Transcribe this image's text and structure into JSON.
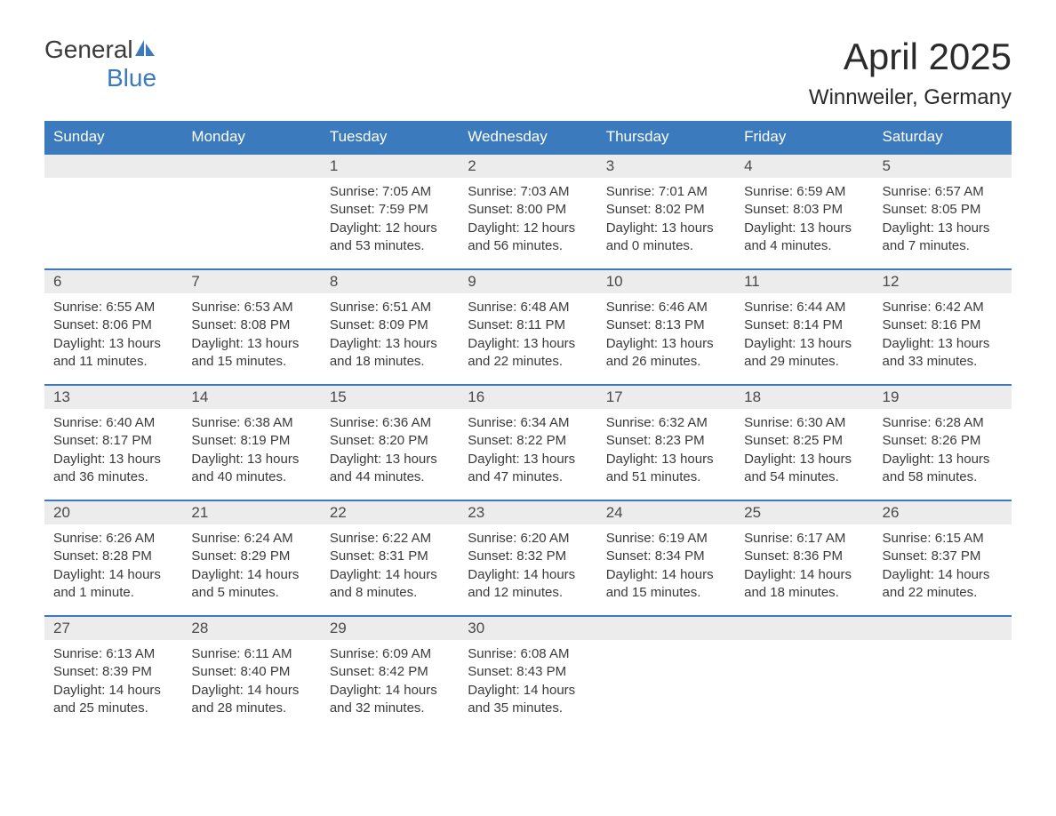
{
  "logo": {
    "text1": "General",
    "text2": "Blue",
    "icon_color": "#3a7abd"
  },
  "title": "April 2025",
  "location": "Winnweiler, Germany",
  "colors": {
    "header_bg": "#3a7abd",
    "header_text": "#ffffff",
    "day_number_bg": "#ececec",
    "day_number_text": "#4a4a4a",
    "body_text": "#3a3a3a",
    "border": "#3a7abd",
    "background": "#ffffff"
  },
  "day_names": [
    "Sunday",
    "Monday",
    "Tuesday",
    "Wednesday",
    "Thursday",
    "Friday",
    "Saturday"
  ],
  "weeks": [
    [
      null,
      null,
      {
        "n": "1",
        "sunrise": "Sunrise: 7:05 AM",
        "sunset": "Sunset: 7:59 PM",
        "daylight": "Daylight: 12 hours and 53 minutes."
      },
      {
        "n": "2",
        "sunrise": "Sunrise: 7:03 AM",
        "sunset": "Sunset: 8:00 PM",
        "daylight": "Daylight: 12 hours and 56 minutes."
      },
      {
        "n": "3",
        "sunrise": "Sunrise: 7:01 AM",
        "sunset": "Sunset: 8:02 PM",
        "daylight": "Daylight: 13 hours and 0 minutes."
      },
      {
        "n": "4",
        "sunrise": "Sunrise: 6:59 AM",
        "sunset": "Sunset: 8:03 PM",
        "daylight": "Daylight: 13 hours and 4 minutes."
      },
      {
        "n": "5",
        "sunrise": "Sunrise: 6:57 AM",
        "sunset": "Sunset: 8:05 PM",
        "daylight": "Daylight: 13 hours and 7 minutes."
      }
    ],
    [
      {
        "n": "6",
        "sunrise": "Sunrise: 6:55 AM",
        "sunset": "Sunset: 8:06 PM",
        "daylight": "Daylight: 13 hours and 11 minutes."
      },
      {
        "n": "7",
        "sunrise": "Sunrise: 6:53 AM",
        "sunset": "Sunset: 8:08 PM",
        "daylight": "Daylight: 13 hours and 15 minutes."
      },
      {
        "n": "8",
        "sunrise": "Sunrise: 6:51 AM",
        "sunset": "Sunset: 8:09 PM",
        "daylight": "Daylight: 13 hours and 18 minutes."
      },
      {
        "n": "9",
        "sunrise": "Sunrise: 6:48 AM",
        "sunset": "Sunset: 8:11 PM",
        "daylight": "Daylight: 13 hours and 22 minutes."
      },
      {
        "n": "10",
        "sunrise": "Sunrise: 6:46 AM",
        "sunset": "Sunset: 8:13 PM",
        "daylight": "Daylight: 13 hours and 26 minutes."
      },
      {
        "n": "11",
        "sunrise": "Sunrise: 6:44 AM",
        "sunset": "Sunset: 8:14 PM",
        "daylight": "Daylight: 13 hours and 29 minutes."
      },
      {
        "n": "12",
        "sunrise": "Sunrise: 6:42 AM",
        "sunset": "Sunset: 8:16 PM",
        "daylight": "Daylight: 13 hours and 33 minutes."
      }
    ],
    [
      {
        "n": "13",
        "sunrise": "Sunrise: 6:40 AM",
        "sunset": "Sunset: 8:17 PM",
        "daylight": "Daylight: 13 hours and 36 minutes."
      },
      {
        "n": "14",
        "sunrise": "Sunrise: 6:38 AM",
        "sunset": "Sunset: 8:19 PM",
        "daylight": "Daylight: 13 hours and 40 minutes."
      },
      {
        "n": "15",
        "sunrise": "Sunrise: 6:36 AM",
        "sunset": "Sunset: 8:20 PM",
        "daylight": "Daylight: 13 hours and 44 minutes."
      },
      {
        "n": "16",
        "sunrise": "Sunrise: 6:34 AM",
        "sunset": "Sunset: 8:22 PM",
        "daylight": "Daylight: 13 hours and 47 minutes."
      },
      {
        "n": "17",
        "sunrise": "Sunrise: 6:32 AM",
        "sunset": "Sunset: 8:23 PM",
        "daylight": "Daylight: 13 hours and 51 minutes."
      },
      {
        "n": "18",
        "sunrise": "Sunrise: 6:30 AM",
        "sunset": "Sunset: 8:25 PM",
        "daylight": "Daylight: 13 hours and 54 minutes."
      },
      {
        "n": "19",
        "sunrise": "Sunrise: 6:28 AM",
        "sunset": "Sunset: 8:26 PM",
        "daylight": "Daylight: 13 hours and 58 minutes."
      }
    ],
    [
      {
        "n": "20",
        "sunrise": "Sunrise: 6:26 AM",
        "sunset": "Sunset: 8:28 PM",
        "daylight": "Daylight: 14 hours and 1 minute."
      },
      {
        "n": "21",
        "sunrise": "Sunrise: 6:24 AM",
        "sunset": "Sunset: 8:29 PM",
        "daylight": "Daylight: 14 hours and 5 minutes."
      },
      {
        "n": "22",
        "sunrise": "Sunrise: 6:22 AM",
        "sunset": "Sunset: 8:31 PM",
        "daylight": "Daylight: 14 hours and 8 minutes."
      },
      {
        "n": "23",
        "sunrise": "Sunrise: 6:20 AM",
        "sunset": "Sunset: 8:32 PM",
        "daylight": "Daylight: 14 hours and 12 minutes."
      },
      {
        "n": "24",
        "sunrise": "Sunrise: 6:19 AM",
        "sunset": "Sunset: 8:34 PM",
        "daylight": "Daylight: 14 hours and 15 minutes."
      },
      {
        "n": "25",
        "sunrise": "Sunrise: 6:17 AM",
        "sunset": "Sunset: 8:36 PM",
        "daylight": "Daylight: 14 hours and 18 minutes."
      },
      {
        "n": "26",
        "sunrise": "Sunrise: 6:15 AM",
        "sunset": "Sunset: 8:37 PM",
        "daylight": "Daylight: 14 hours and 22 minutes."
      }
    ],
    [
      {
        "n": "27",
        "sunrise": "Sunrise: 6:13 AM",
        "sunset": "Sunset: 8:39 PM",
        "daylight": "Daylight: 14 hours and 25 minutes."
      },
      {
        "n": "28",
        "sunrise": "Sunrise: 6:11 AM",
        "sunset": "Sunset: 8:40 PM",
        "daylight": "Daylight: 14 hours and 28 minutes."
      },
      {
        "n": "29",
        "sunrise": "Sunrise: 6:09 AM",
        "sunset": "Sunset: 8:42 PM",
        "daylight": "Daylight: 14 hours and 32 minutes."
      },
      {
        "n": "30",
        "sunrise": "Sunrise: 6:08 AM",
        "sunset": "Sunset: 8:43 PM",
        "daylight": "Daylight: 14 hours and 35 minutes."
      },
      null,
      null,
      null
    ]
  ]
}
